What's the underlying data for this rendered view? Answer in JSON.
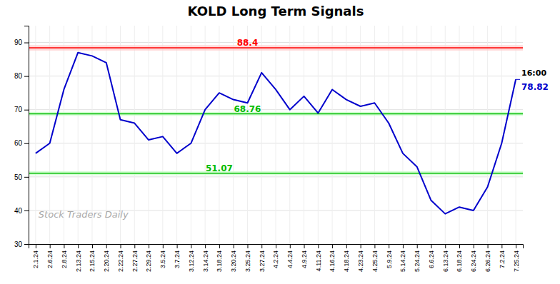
{
  "chart_data": {
    "type": "line",
    "title": "KOLD Long Term Signals",
    "categories": [
      "2.1.24",
      "2.6.24",
      "2.8.24",
      "2.13.24",
      "2.15.24",
      "2.20.24",
      "2.22.24",
      "2.27.24",
      "2.29.24",
      "3.5.24",
      "3.7.24",
      "3.12.24",
      "3.14.24",
      "3.18.24",
      "3.20.24",
      "3.25.24",
      "3.27.24",
      "4.2.24",
      "4.4.24",
      "4.9.24",
      "4.11.24",
      "4.16.24",
      "4.18.24",
      "4.23.24",
      "4.25.24",
      "5.9.24",
      "5.14.24",
      "5.24.24",
      "6.6.24",
      "6.13.24",
      "6.18.24",
      "6.24.24",
      "6.26.24",
      "7.2.24",
      "7.25.24"
    ],
    "values": [
      57,
      60,
      76,
      87,
      86,
      84,
      67,
      66,
      61,
      62,
      57,
      60,
      70,
      75,
      73,
      72,
      81,
      76,
      70,
      74,
      69,
      76,
      73,
      71,
      72,
      66,
      57,
      53,
      43,
      39,
      41,
      40,
      47,
      60,
      79
    ],
    "color": "#0000cc",
    "ylim": [
      30,
      95
    ],
    "yticks": [
      30,
      40,
      50,
      60,
      70,
      80,
      90
    ],
    "grid": true,
    "hlines": [
      {
        "value": 88.4,
        "band": 0.8,
        "label": "88.4",
        "color": "#ff0000",
        "band_color": "#ffcccc"
      },
      {
        "value": 68.76,
        "band": 0.6,
        "label": "68.76",
        "color": "#00bb00",
        "band_color": "#ccffcc"
      },
      {
        "value": 51.07,
        "band": 0.6,
        "label": "51.07",
        "color": "#00bb00",
        "band_color": "#ccffcc"
      }
    ],
    "annotations": [
      {
        "text": "16:00"
      },
      {
        "text": "78.82",
        "color": "#0000cc"
      }
    ],
    "watermark": "Stock Traders Daily"
  }
}
